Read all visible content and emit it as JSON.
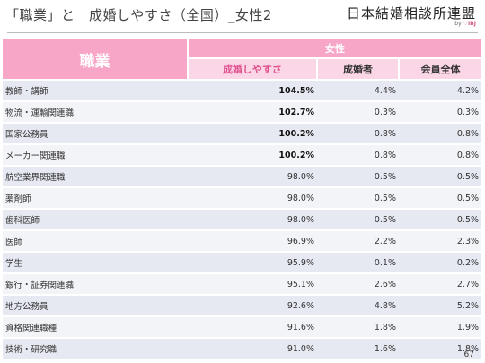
{
  "header": {
    "title": "「職業」と　成婚しやすさ（全国）_女性2",
    "logo_main": "日本結婚相談所連盟",
    "logo_by": "by",
    "logo_ibj": "IBJ"
  },
  "table": {
    "category_header": "職業",
    "group_header": "女性",
    "columns": [
      "成婚しやすさ",
      "成婚者",
      "会員全体"
    ],
    "rows": [
      {
        "category": "教師・講師",
        "ease": "104.5%",
        "married": "4.4%",
        "members": "4.2%",
        "bold": true
      },
      {
        "category": "物流・運輸関連職",
        "ease": "102.7%",
        "married": "0.3%",
        "members": "0.3%",
        "bold": true
      },
      {
        "category": "国家公務員",
        "ease": "100.2%",
        "married": "0.8%",
        "members": "0.8%",
        "bold": true
      },
      {
        "category": "メーカー関連職",
        "ease": "100.2%",
        "married": "0.8%",
        "members": "0.8%",
        "bold": true
      },
      {
        "category": "航空業界関連職",
        "ease": "98.0%",
        "married": "0.5%",
        "members": "0.5%",
        "bold": false
      },
      {
        "category": "薬剤師",
        "ease": "98.0%",
        "married": "0.5%",
        "members": "0.5%",
        "bold": false
      },
      {
        "category": "歯科医師",
        "ease": "98.0%",
        "married": "0.5%",
        "members": "0.5%",
        "bold": false
      },
      {
        "category": "医師",
        "ease": "96.9%",
        "married": "2.2%",
        "members": "2.3%",
        "bold": false
      },
      {
        "category": "学生",
        "ease": "95.9%",
        "married": "0.1%",
        "members": "0.2%",
        "bold": false
      },
      {
        "category": "銀行・証券関連職",
        "ease": "95.1%",
        "married": "2.6%",
        "members": "2.7%",
        "bold": false
      },
      {
        "category": "地方公務員",
        "ease": "92.6%",
        "married": "4.8%",
        "members": "5.2%",
        "bold": false
      },
      {
        "category": "資格関連職種",
        "ease": "91.6%",
        "married": "1.8%",
        "members": "1.9%",
        "bold": false
      },
      {
        "category": "技術・研究職",
        "ease": "91.0%",
        "married": "1.6%",
        "members": "1.8%",
        "bold": false
      }
    ]
  },
  "footer": {
    "page_number": "67"
  },
  "colors": {
    "header_pink": "#f7a6c8",
    "subheader_pink": "#fbd6e6",
    "accent_text": "#e0508c",
    "row_odd": "#e6e9f2",
    "row_even": "#f3f4f8"
  }
}
